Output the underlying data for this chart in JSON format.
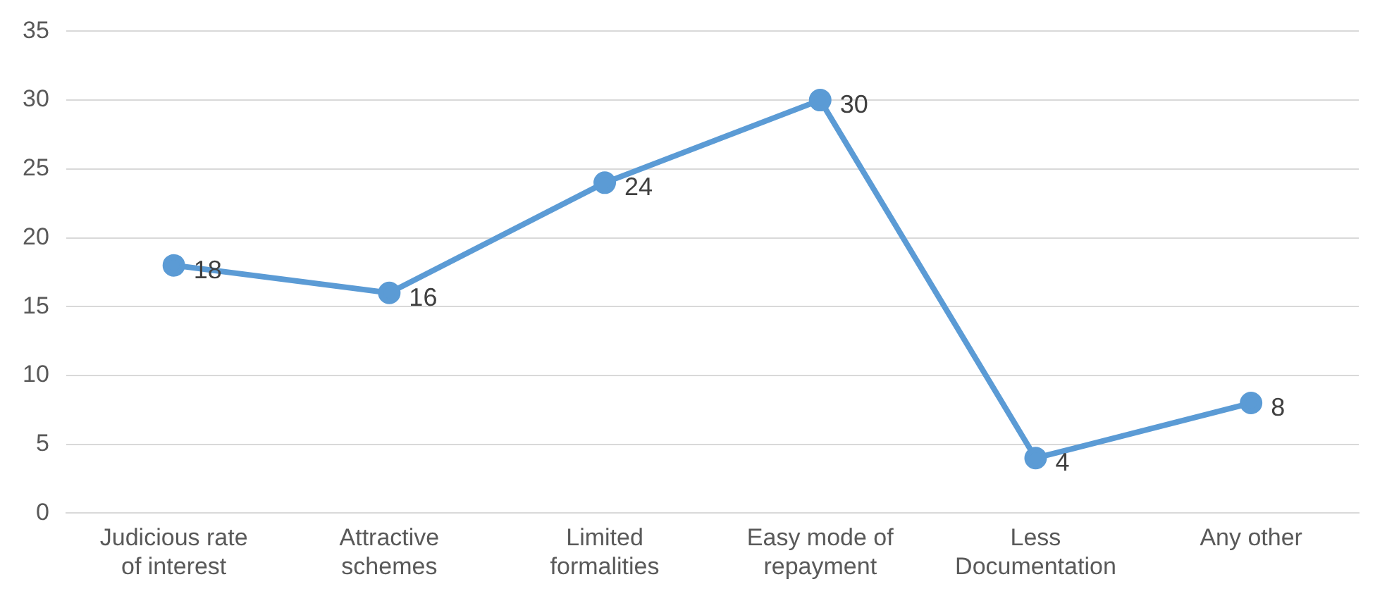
{
  "chart_data": {
    "type": "line",
    "categories": [
      "Judicious rate of interest",
      "Attractive schemes",
      "Limited formalities",
      "Easy mode of repayment",
      "Less Documentation",
      "Any other"
    ],
    "series": [
      {
        "color": "#5b9bd5",
        "values": [
          18,
          16,
          24,
          30,
          4,
          8
        ]
      }
    ],
    "ylim": [
      0,
      35
    ],
    "yticks": [
      0,
      5,
      10,
      15,
      20,
      25,
      30,
      35
    ],
    "grid": "y",
    "legend": false,
    "marker": "circle",
    "line_style": "solid",
    "data_labels": true
  }
}
